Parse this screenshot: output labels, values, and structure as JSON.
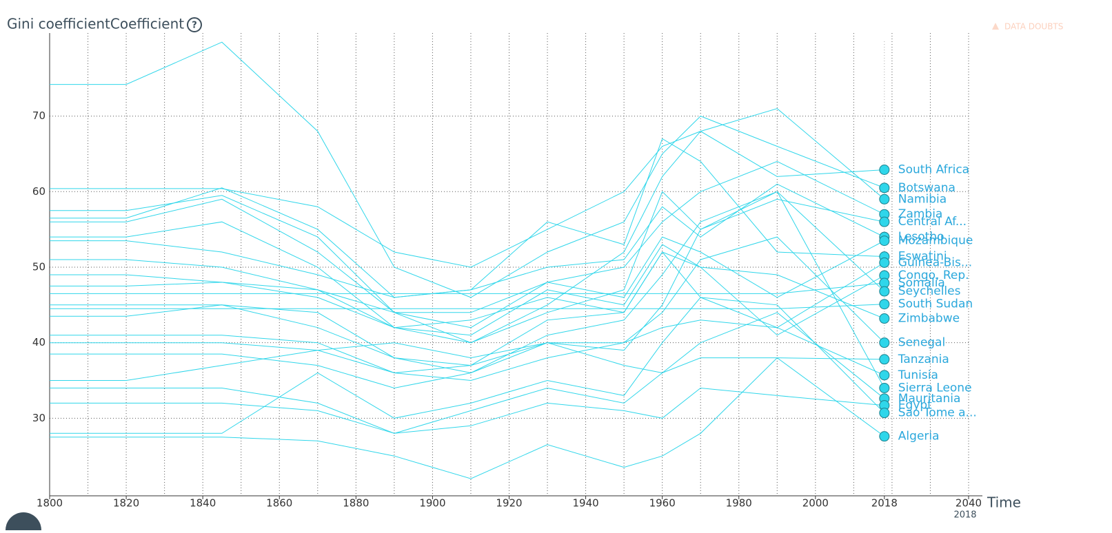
{
  "chart_data": {
    "type": "line",
    "title": "Gini coefficientCoefficient",
    "help_icon": "?",
    "data_doubts": "DATA DOUBTS",
    "x_label": "Time",
    "current_time": "2018",
    "x": [
      1800,
      1820,
      1845,
      1870,
      1890,
      1910,
      1930,
      1950,
      1960,
      1970,
      1990,
      2018
    ],
    "xlim": [
      1800,
      2040
    ],
    "xticks": [
      1800,
      1820,
      1840,
      1860,
      1880,
      1900,
      1920,
      1940,
      1960,
      1980,
      2000,
      2018,
      2040
    ],
    "xgrid": [
      1810,
      1820,
      1830,
      1840,
      1850,
      1860,
      1870,
      1880,
      1890,
      1900,
      1910,
      1920,
      1930,
      1940,
      1950,
      1960,
      1970,
      1980,
      1990,
      2000,
      2010,
      2020,
      2030,
      2040
    ],
    "ylim": [
      20,
      81
    ],
    "yticks": [
      30,
      40,
      50,
      60,
      70
    ],
    "grid": true,
    "series": [
      {
        "name": "South Africa",
        "color": "#2fd6ea",
        "values": [
          60.4,
          60.4,
          60.4,
          58,
          52,
          50,
          55,
          60,
          66,
          68,
          62,
          62.9
        ]
      },
      {
        "name": "Botswana",
        "color": "#2fd6ea",
        "values": [
          74.2,
          74.2,
          79.8,
          68,
          50,
          46,
          52,
          56,
          65,
          70,
          66,
          60.5
        ]
      },
      {
        "name": "Namibia",
        "color": "#2fd6ea",
        "values": [
          57.5,
          57.5,
          59.5,
          54,
          44,
          40,
          45,
          52,
          62,
          68,
          71,
          59.0
        ]
      },
      {
        "name": "Zambia",
        "color": "#2fd6ea",
        "values": [
          56,
          56,
          59,
          52,
          44,
          42,
          48,
          50,
          56,
          60,
          64,
          57.0
        ]
      },
      {
        "name": "Central Af...",
        "color": "#2fd6ea",
        "values": [
          54,
          54,
          56,
          50,
          42,
          40,
          44,
          47,
          60,
          55,
          59,
          56.0
        ]
      },
      {
        "name": "Lesotho",
        "color": "#2fd6ea",
        "values": [
          53.5,
          53.5,
          52,
          49,
          46,
          47,
          50,
          51,
          58,
          54,
          61,
          54.0
        ]
      },
      {
        "name": "Mozambique",
        "color": "#2fd6ea",
        "values": [
          51,
          51,
          50,
          47,
          44,
          44,
          48,
          46,
          54,
          52,
          46,
          53.5
        ]
      },
      {
        "name": "Eswatini",
        "color": "#2fd6ea",
        "values": [
          56.5,
          56.5,
          60.5,
          55,
          46,
          47,
          56,
          53,
          67,
          64,
          52,
          51.4
        ]
      },
      {
        "name": "Guinea-Bis...",
        "color": "#2fd6ea",
        "values": [
          49,
          49,
          48,
          46,
          42,
          43,
          46,
          44,
          52,
          46,
          42,
          50.6
        ]
      },
      {
        "name": "Congo, Rep.",
        "color": "#2fd6ea",
        "values": [
          47.5,
          47.5,
          48,
          47,
          42,
          41,
          47,
          45,
          53,
          50,
          41,
          48.9
        ]
      },
      {
        "name": "Somalia",
        "color": "#2fd6ea",
        "values": [
          46.5,
          46.5,
          46.5,
          46.5,
          46.5,
          46.5,
          46.5,
          46.5,
          46.5,
          46.5,
          46.5,
          47.9
        ]
      },
      {
        "name": "Seychelles",
        "color": "#2fd6ea",
        "values": [
          45,
          45,
          45,
          44,
          38,
          36,
          41,
          43,
          49,
          56,
          60,
          46.8
        ]
      },
      {
        "name": "South Sudan",
        "color": "#2fd6ea",
        "values": [
          44.5,
          44.5,
          44.5,
          44.5,
          44.5,
          44.5,
          44.5,
          44.5,
          44.5,
          44.5,
          44.5,
          45.1
        ]
      },
      {
        "name": "Zimbabwe",
        "color": "#2fd6ea",
        "values": [
          43.5,
          43.5,
          45,
          42,
          38,
          37,
          43,
          44,
          52,
          50,
          49,
          43.2
        ]
      },
      {
        "name": "Senegal",
        "color": "#2fd6ea",
        "values": [
          41,
          41,
          41,
          40,
          36,
          35,
          38,
          40,
          44,
          51,
          54,
          40.0
        ]
      },
      {
        "name": "Tanzania",
        "color": "#2fd6ea",
        "values": [
          38.5,
          38.5,
          38.5,
          37,
          34,
          36,
          40,
          37,
          36,
          38,
          38,
          37.8
        ]
      },
      {
        "name": "Tunisia",
        "color": "#2fd6ea",
        "values": [
          40,
          40,
          40,
          39,
          36,
          37,
          40,
          40,
          42,
          43,
          42,
          35.7
        ]
      },
      {
        "name": "Sierra Leone",
        "color": "#2fd6ea",
        "values": [
          35,
          35,
          37,
          39,
          40,
          38,
          40,
          39,
          45,
          55,
          60,
          34.0
        ]
      },
      {
        "name": "Mauritania",
        "color": "#2fd6ea",
        "values": [
          34,
          34,
          34,
          32,
          28,
          31,
          34,
          32,
          36,
          40,
          44,
          32.6
        ]
      },
      {
        "name": "Egypt",
        "color": "#2fd6ea",
        "values": [
          32,
          32,
          32,
          31,
          28,
          29,
          32,
          31,
          30,
          34,
          33,
          31.7
        ]
      },
      {
        "name": "Sao Tome a...",
        "color": "#2fd6ea",
        "values": [
          28,
          28,
          28,
          36,
          30,
          32,
          35,
          33,
          40,
          46,
          45,
          30.7
        ]
      },
      {
        "name": "Algeria",
        "color": "#2fd6ea",
        "values": [
          27.5,
          27.5,
          27.5,
          27,
          25,
          22,
          26.5,
          23.5,
          25,
          28,
          38,
          27.6
        ]
      }
    ]
  }
}
